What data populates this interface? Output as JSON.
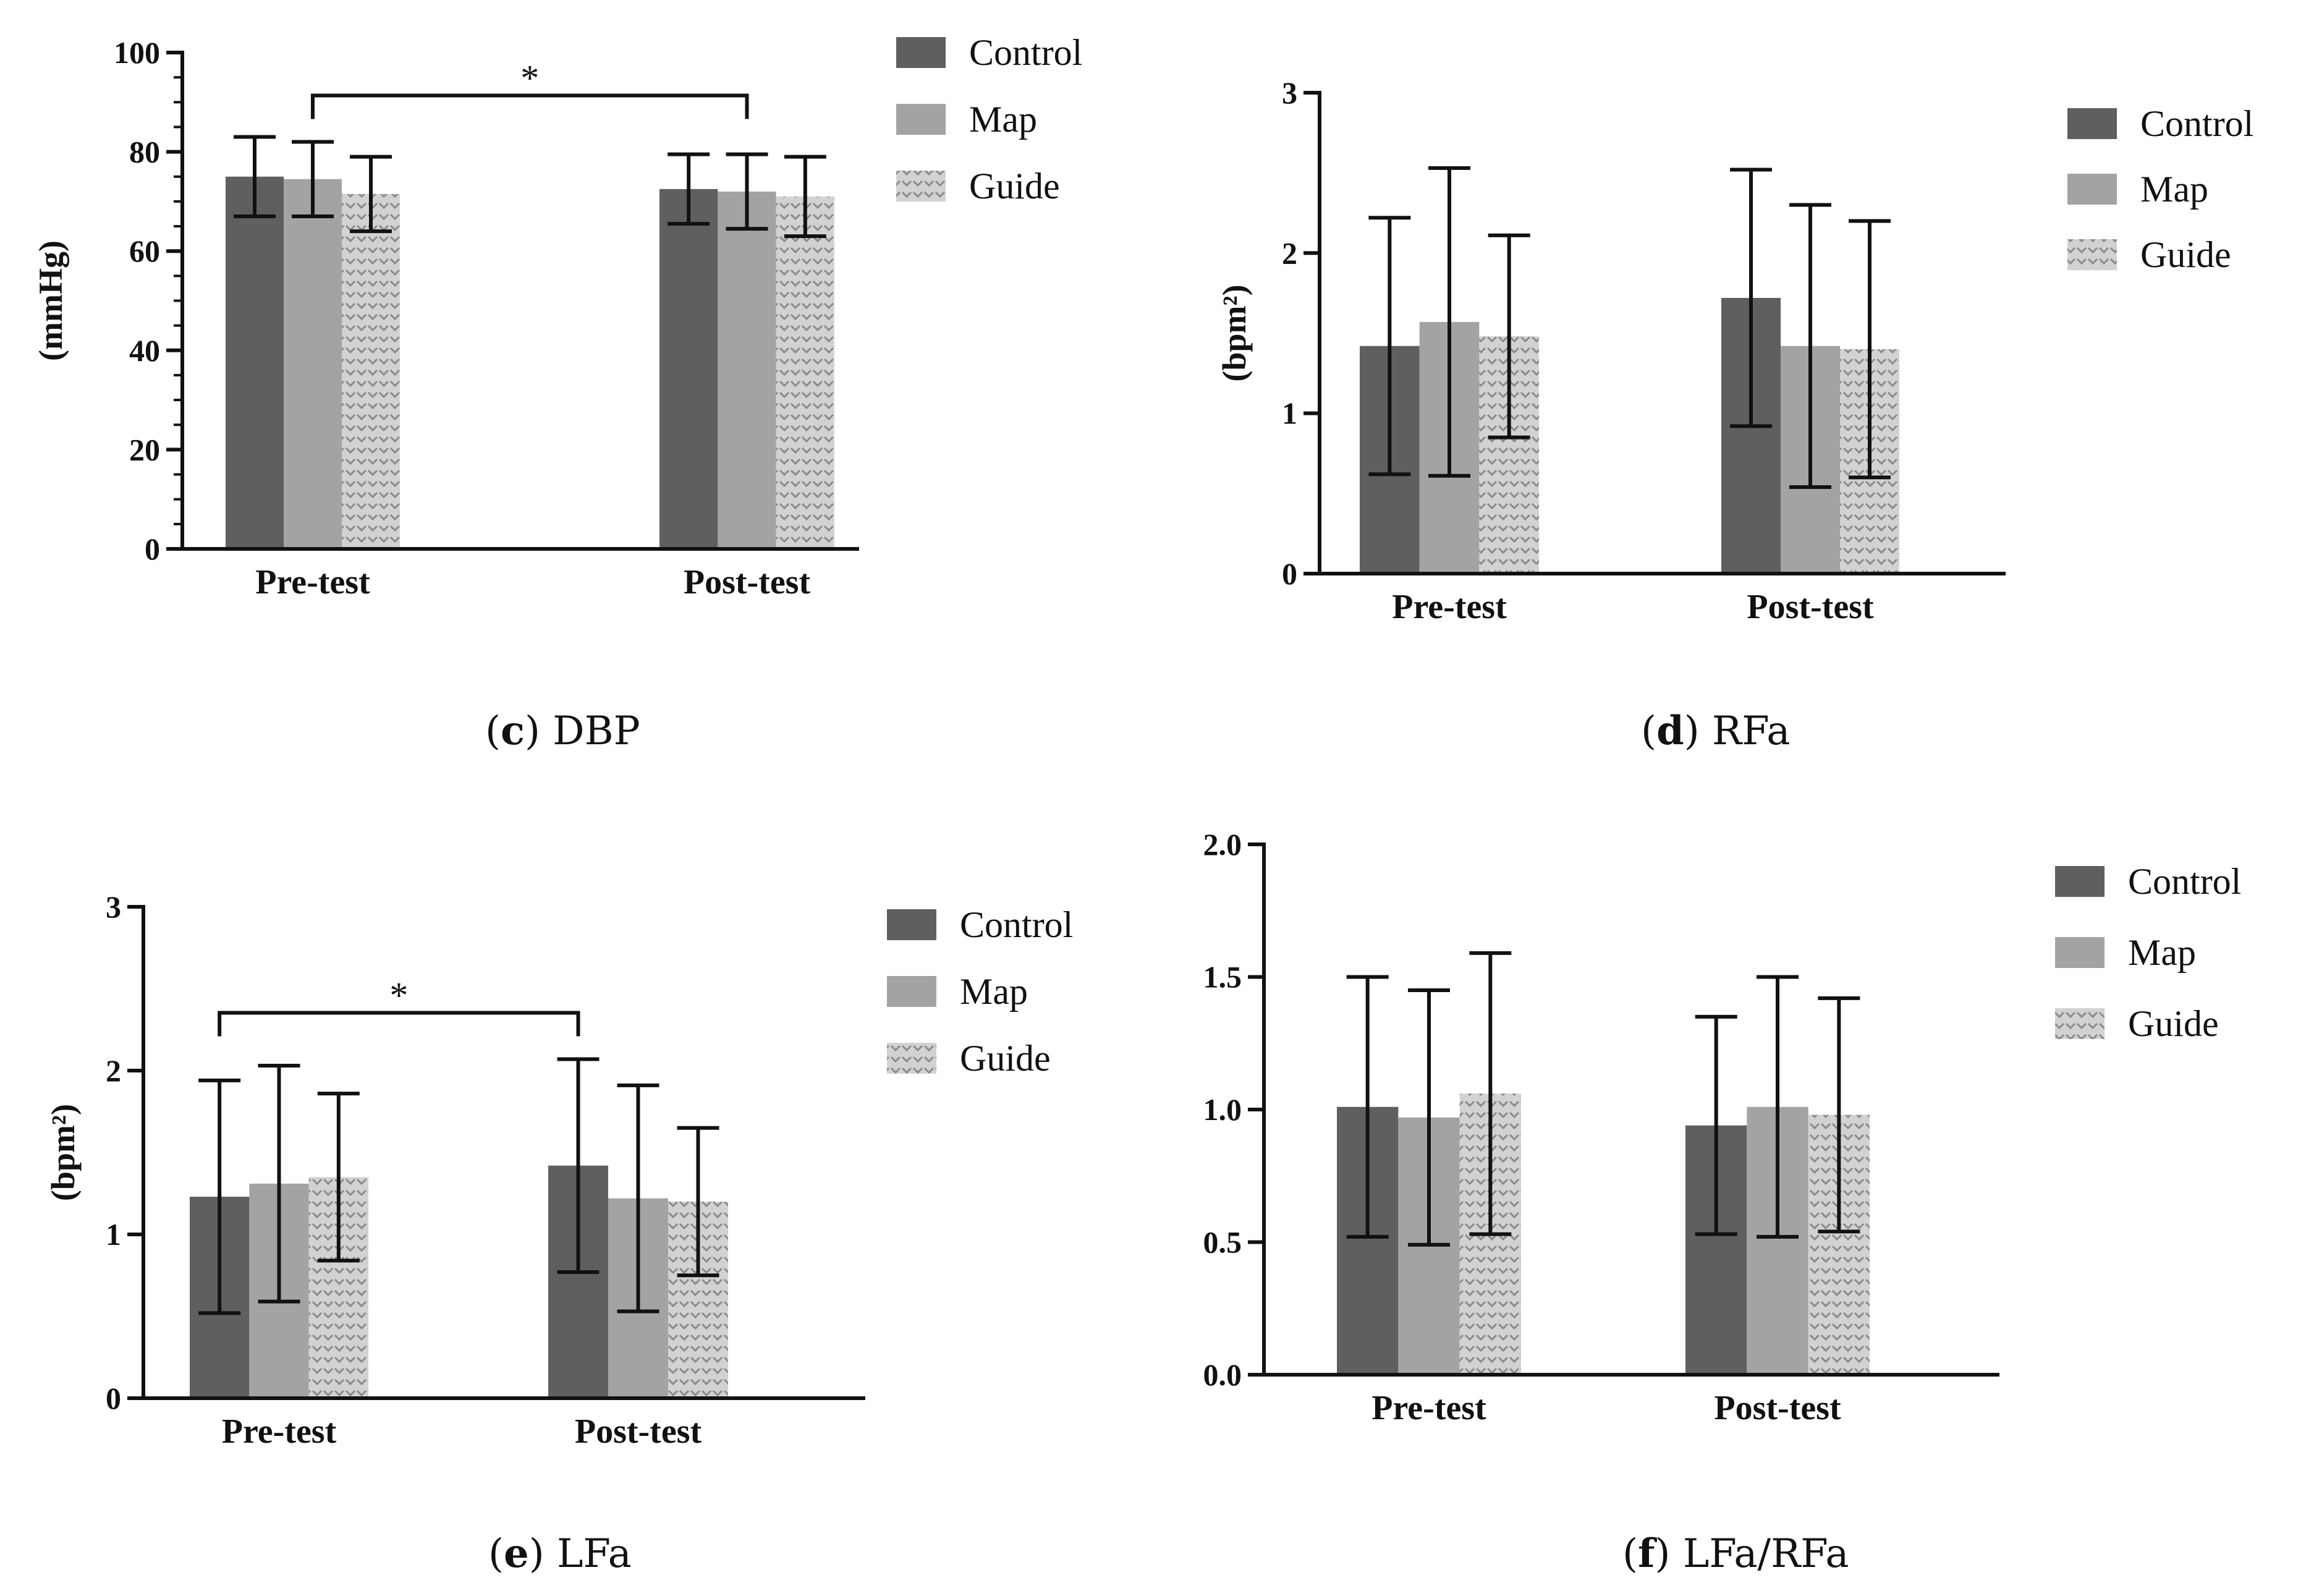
{
  "colors": {
    "control": "#5f5f5f",
    "map": "#a3a3a5",
    "guide_bg": "#d2d2d2",
    "guide_mark": "#8a8a8a",
    "axis": "#111111"
  },
  "chart_data": [
    {
      "id": "c",
      "type": "bar",
      "caption_letter": "c",
      "caption_text": " DBP",
      "categories": [
        "Pre-test",
        "Post-test"
      ],
      "series": [
        {
          "name": "Control",
          "values": [
            75,
            72.5
          ],
          "errors": [
            8,
            7
          ]
        },
        {
          "name": "Map",
          "values": [
            74.5,
            72
          ],
          "errors": [
            7.5,
            7.5
          ]
        },
        {
          "name": "Guide",
          "values": [
            71.5,
            71
          ],
          "errors": [
            7.5,
            8
          ]
        }
      ],
      "ylabel": "(mmHg)",
      "ylim": [
        0,
        100
      ],
      "yticks": [
        "0",
        "20",
        "40",
        "60",
        "80",
        "100"
      ],
      "minor_ticks": true,
      "legend": "top-right",
      "significance": {
        "symbol": "*",
        "from_category": 0,
        "from_series": 1,
        "to_category": 1,
        "to_series": 1
      }
    },
    {
      "id": "d",
      "type": "bar",
      "caption_letter": "d",
      "caption_text": " RFa",
      "categories": [
        "Pre-test",
        "Post-test"
      ],
      "series": [
        {
          "name": "Control",
          "values": [
            1.42,
            1.72
          ],
          "errors": [
            0.8,
            0.8
          ]
        },
        {
          "name": "Map",
          "values": [
            1.57,
            1.42
          ],
          "errors": [
            0.96,
            0.88
          ]
        },
        {
          "name": "Guide",
          "values": [
            1.48,
            1.4
          ],
          "errors": [
            0.63,
            0.8
          ]
        }
      ],
      "ylabel": "(bpm²)",
      "ylim": [
        0,
        3
      ],
      "yticks": [
        "0",
        "1",
        "2",
        "3"
      ],
      "minor_ticks": false,
      "legend": "top-right",
      "significance": null
    },
    {
      "id": "e",
      "type": "bar",
      "caption_letter": "e",
      "caption_text": " LFa",
      "categories": [
        "Pre-test",
        "Post-test"
      ],
      "series": [
        {
          "name": "Control",
          "values": [
            1.23,
            1.42
          ],
          "errors": [
            0.71,
            0.65
          ]
        },
        {
          "name": "Map",
          "values": [
            1.31,
            1.22
          ],
          "errors": [
            0.72,
            0.69
          ]
        },
        {
          "name": "Guide",
          "values": [
            1.35,
            1.2
          ],
          "errors": [
            0.51,
            0.45
          ]
        }
      ],
      "ylabel": "(bpm²)",
      "ylim": [
        0,
        3
      ],
      "yticks": [
        "0",
        "1",
        "2",
        "3"
      ],
      "minor_ticks": false,
      "legend": "top-right",
      "significance": {
        "symbol": "*",
        "from_category": 0,
        "from_series": 0,
        "to_category": 1,
        "to_series": 0
      }
    },
    {
      "id": "f",
      "type": "bar",
      "caption_letter": "f",
      "caption_text": " LFa/RFa",
      "categories": [
        "Pre-test",
        "Post-test"
      ],
      "series": [
        {
          "name": "Control",
          "values": [
            1.01,
            0.94
          ],
          "errors": [
            0.49,
            0.41
          ]
        },
        {
          "name": "Map",
          "values": [
            0.97,
            1.01
          ],
          "errors": [
            0.48,
            0.49
          ]
        },
        {
          "name": "Guide",
          "values": [
            1.06,
            0.98
          ],
          "errors": [
            0.53,
            0.44
          ]
        }
      ],
      "ylabel": "",
      "ylim": [
        0,
        2
      ],
      "yticks": [
        "0.0",
        "0.5",
        "1.0",
        "1.5",
        "2.0"
      ],
      "minor_ticks": false,
      "legend": "top-right",
      "significance": null
    }
  ]
}
